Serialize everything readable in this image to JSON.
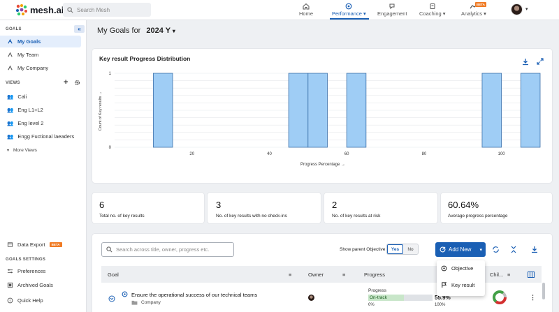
{
  "header": {
    "brand": "mesh.ai",
    "search_placeholder": "Search Mesh",
    "nav": [
      {
        "label": "Home",
        "icon": "home-icon"
      },
      {
        "label": "Performance",
        "icon": "performance-icon",
        "active": true
      },
      {
        "label": "Engagement",
        "icon": "engagement-icon"
      },
      {
        "label": "Coaching",
        "icon": "coaching-icon"
      },
      {
        "label": "Analytics",
        "icon": "analytics-icon"
      }
    ],
    "analytics_badge": "BETA"
  },
  "sidebar": {
    "goals_heading": "GOALS",
    "goals_items": [
      "My Goals",
      "My Team",
      "My Company"
    ],
    "views_heading": "VIEWS",
    "views_items": [
      "Cali",
      "Eng L1+L2",
      "Eng level 2",
      "Engg Fuctional laeaders"
    ],
    "more_views": "More Views",
    "data_export": "Data Export",
    "data_export_badge": "BETA",
    "settings_heading": "GOALS SETTINGS",
    "settings_items": [
      "Preferences",
      "Archived Goals"
    ],
    "quick_help": "Quick Help"
  },
  "page": {
    "title": "My Goals for",
    "year": "2024 Y"
  },
  "chart_data": {
    "type": "bar",
    "title": "Key result Progress Distribution",
    "xlabel": "Progress Percentage →",
    "ylabel": "Count of Key results →",
    "xlim": [
      0,
      110
    ],
    "ylim": [
      0,
      1
    ],
    "x_ticks": [
      20,
      40,
      60,
      80,
      100
    ],
    "y_ticks": [
      0,
      1
    ],
    "bars": [
      {
        "x0": 10,
        "x1": 15,
        "value": 1
      },
      {
        "x0": 45,
        "x1": 50,
        "value": 1
      },
      {
        "x0": 50,
        "x1": 55,
        "value": 1
      },
      {
        "x0": 60,
        "x1": 65,
        "value": 1
      },
      {
        "x0": 95,
        "x1": 100,
        "value": 1
      },
      {
        "x0": 105,
        "x1": 110,
        "value": 1
      }
    ]
  },
  "stats": [
    {
      "value": "6",
      "label": "Total no. of key results"
    },
    {
      "value": "3",
      "label": "No. of key results with no check-ins"
    },
    {
      "value": "2",
      "label": "No. of key results at risk"
    },
    {
      "value": "60.64%",
      "label": "Average progress percentage"
    }
  ],
  "table": {
    "search_placeholder": "Search across title, owner, progress etc.",
    "show_parent_label": "Show parent Objective",
    "toggle_yes": "Yes",
    "toggle_no": "No",
    "add_new": "Add New",
    "add_menu": [
      "Objective",
      "Key result"
    ],
    "columns": [
      "Goal",
      "Owner",
      "Progress",
      "Chil..."
    ],
    "rows": [
      {
        "title": "Ensure the operational success of our technical teams",
        "type": "Company",
        "progress_label": "Progress",
        "status": "On-track",
        "progress": "55.9%",
        "progress_value": 55.9,
        "range_min": "0%",
        "range_max": "100%"
      }
    ]
  },
  "colors": {
    "primary": "#1a5fb4",
    "bar_fill": "#9fcdf5",
    "bar_stroke": "#3a6ea8",
    "on_track": "#c8e6c9"
  }
}
